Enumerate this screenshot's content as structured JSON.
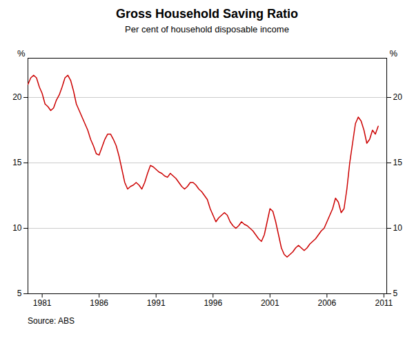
{
  "chart_data": {
    "type": "line",
    "title": "Gross Household Saving Ratio",
    "subtitle": "Per cent of household disposable income",
    "source": "Source: ABS",
    "ylabel": "%",
    "y2label": "%",
    "color": "#CC0000",
    "grid": true,
    "xlim": [
      1979.75,
      2011.25
    ],
    "xticks": [
      1981,
      1986,
      1991,
      1996,
      2001,
      2006,
      2011
    ],
    "ylim": [
      5,
      23
    ],
    "yticks": [
      5,
      10,
      15,
      20
    ],
    "y2lim": [
      5,
      23
    ],
    "y2ticks": [
      5,
      10,
      15,
      20
    ],
    "x": [
      1979.75,
      1980.0,
      1980.25,
      1980.5,
      1980.75,
      1981.0,
      1981.25,
      1981.5,
      1981.75,
      1982.0,
      1982.25,
      1982.5,
      1982.75,
      1983.0,
      1983.25,
      1983.5,
      1983.75,
      1984.0,
      1984.25,
      1984.5,
      1984.75,
      1985.0,
      1985.25,
      1985.5,
      1985.75,
      1986.0,
      1986.25,
      1986.5,
      1986.75,
      1987.0,
      1987.25,
      1987.5,
      1987.75,
      1988.0,
      1988.25,
      1988.5,
      1988.75,
      1989.0,
      1989.25,
      1989.5,
      1989.75,
      1990.0,
      1990.25,
      1990.5,
      1990.75,
      1991.0,
      1991.25,
      1991.5,
      1991.75,
      1992.0,
      1992.25,
      1992.5,
      1992.75,
      1993.0,
      1993.25,
      1993.5,
      1993.75,
      1994.0,
      1994.25,
      1994.5,
      1994.75,
      1995.0,
      1995.25,
      1995.5,
      1995.75,
      1996.0,
      1996.25,
      1996.5,
      1996.75,
      1997.0,
      1997.25,
      1997.5,
      1997.75,
      1998.0,
      1998.25,
      1998.5,
      1998.75,
      1999.0,
      1999.25,
      1999.5,
      1999.75,
      2000.0,
      2000.25,
      2000.5,
      2000.75,
      2001.0,
      2001.25,
      2001.5,
      2001.75,
      2002.0,
      2002.25,
      2002.5,
      2002.75,
      2003.0,
      2003.25,
      2003.5,
      2003.75,
      2004.0,
      2004.25,
      2004.5,
      2004.75,
      2005.0,
      2005.25,
      2005.5,
      2005.75,
      2006.0,
      2006.25,
      2006.5,
      2006.75,
      2007.0,
      2007.25,
      2007.5,
      2007.75,
      2008.0,
      2008.25,
      2008.5,
      2008.75,
      2009.0,
      2009.25,
      2009.5,
      2009.75,
      2010.0,
      2010.25,
      2010.5
    ],
    "values": [
      21.0,
      21.5,
      21.7,
      21.5,
      20.8,
      20.3,
      19.5,
      19.3,
      19.0,
      19.2,
      19.8,
      20.2,
      20.8,
      21.5,
      21.7,
      21.3,
      20.5,
      19.5,
      19.0,
      18.5,
      18.0,
      17.5,
      16.8,
      16.3,
      15.7,
      15.6,
      16.2,
      16.8,
      17.2,
      17.2,
      16.8,
      16.3,
      15.5,
      14.5,
      13.5,
      13.0,
      13.2,
      13.3,
      13.5,
      13.3,
      13.0,
      13.5,
      14.2,
      14.8,
      14.7,
      14.5,
      14.3,
      14.2,
      14.0,
      13.9,
      14.2,
      14.0,
      13.8,
      13.5,
      13.2,
      13.0,
      13.2,
      13.5,
      13.5,
      13.3,
      13.0,
      12.8,
      12.5,
      12.2,
      11.5,
      11.0,
      10.5,
      10.8,
      11.0,
      11.2,
      11.0,
      10.5,
      10.2,
      10.0,
      10.2,
      10.5,
      10.3,
      10.2,
      10.0,
      9.8,
      9.5,
      9.2,
      9.0,
      9.5,
      10.5,
      11.5,
      11.3,
      10.5,
      9.5,
      8.5,
      8.0,
      7.8,
      8.0,
      8.2,
      8.5,
      8.7,
      8.5,
      8.3,
      8.5,
      8.8,
      9.0,
      9.2,
      9.5,
      9.8,
      10.0,
      10.5,
      11.0,
      11.5,
      12.3,
      12.0,
      11.2,
      11.5,
      13.0,
      15.0,
      16.5,
      18.0,
      18.5,
      18.2,
      17.5,
      16.5,
      16.8,
      17.5,
      17.2,
      17.8
    ]
  }
}
